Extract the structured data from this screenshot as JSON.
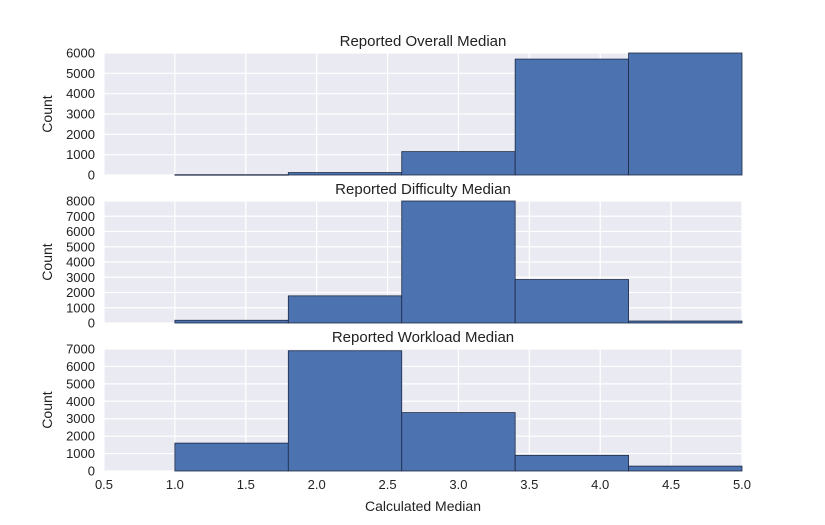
{
  "chart_data": [
    {
      "type": "bar",
      "title": "Reported Overall Median",
      "ylabel": "Count",
      "xlabel": "",
      "bins": [
        {
          "x0": 1.0,
          "x1": 1.8,
          "value": 15
        },
        {
          "x0": 1.8,
          "x1": 2.6,
          "value": 120
        },
        {
          "x0": 2.6,
          "x1": 3.4,
          "value": 1150
        },
        {
          "x0": 3.4,
          "x1": 4.2,
          "value": 5700
        },
        {
          "x0": 4.2,
          "x1": 5.0,
          "value": 6000
        }
      ],
      "xlim": [
        0.5,
        5.0
      ],
      "ylim": [
        0,
        6000
      ],
      "yticks": [
        0,
        1000,
        2000,
        3000,
        4000,
        5000,
        6000
      ],
      "grid": true
    },
    {
      "type": "bar",
      "title": "Reported Difficulty Median",
      "ylabel": "Count",
      "xlabel": "",
      "bins": [
        {
          "x0": 1.0,
          "x1": 1.8,
          "value": 180
        },
        {
          "x0": 1.8,
          "x1": 2.6,
          "value": 1780
        },
        {
          "x0": 2.6,
          "x1": 3.4,
          "value": 8000
        },
        {
          "x0": 3.4,
          "x1": 4.2,
          "value": 2850
        },
        {
          "x0": 4.2,
          "x1": 5.0,
          "value": 130
        }
      ],
      "xlim": [
        0.5,
        5.0
      ],
      "ylim": [
        0,
        8000
      ],
      "yticks": [
        0,
        1000,
        2000,
        3000,
        4000,
        5000,
        6000,
        7000,
        8000
      ],
      "grid": true
    },
    {
      "type": "bar",
      "title": "Reported Workload Median",
      "ylabel": "Count",
      "xlabel": "Calculated Median",
      "bins": [
        {
          "x0": 1.0,
          "x1": 1.8,
          "value": 1600
        },
        {
          "x0": 1.8,
          "x1": 2.6,
          "value": 6900
        },
        {
          "x0": 2.6,
          "x1": 3.4,
          "value": 3350
        },
        {
          "x0": 3.4,
          "x1": 4.2,
          "value": 900
        },
        {
          "x0": 4.2,
          "x1": 5.0,
          "value": 280
        }
      ],
      "xlim": [
        0.5,
        5.0
      ],
      "ylim": [
        0,
        7000
      ],
      "yticks": [
        0,
        1000,
        2000,
        3000,
        4000,
        5000,
        6000,
        7000
      ],
      "xticks": [
        "0.5",
        "1.0",
        "1.5",
        "2.0",
        "2.5",
        "3.0",
        "3.5",
        "4.0",
        "4.5",
        "5.0"
      ],
      "grid": true
    }
  ],
  "colors": {
    "bar": "#4c72b0",
    "bar_edge": "#1c2a44",
    "panel_bg": "#eaeaf2",
    "grid": "#ffffff"
  }
}
